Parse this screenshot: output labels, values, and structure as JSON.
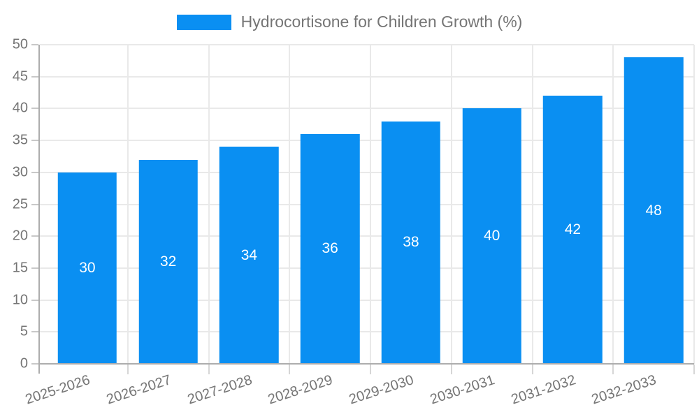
{
  "chart_data": {
    "type": "bar",
    "legend": {
      "label": "Hydrocortisone for Children Growth (%)",
      "position": "top"
    },
    "categories": [
      "2025-2026",
      "2026-2027",
      "2027-2028",
      "2028-2029",
      "2029-2030",
      "2030-2031",
      "2031-2032",
      "2032-2033"
    ],
    "series": [
      {
        "name": "Hydrocortisone for Children Growth (%)",
        "values": [
          30,
          32,
          34,
          36,
          38,
          40,
          42,
          48
        ]
      }
    ],
    "value_labels": [
      "30",
      "32",
      "34",
      "36",
      "38",
      "40",
      "42",
      "48"
    ],
    "ylim": [
      0,
      50
    ],
    "ytick_step": 5,
    "ytick_labels": [
      "0",
      "5",
      "10",
      "15",
      "20",
      "25",
      "30",
      "35",
      "40",
      "45",
      "50"
    ],
    "grid": true,
    "x_label_rotation_deg": -18,
    "colors": {
      "bar": "#0a8ff2",
      "value_label": "#ffffff",
      "axis_label": "#757575",
      "legend_text": "#757575",
      "gridline": "#e9e9e9",
      "axis_line": "#adadad",
      "background": "#ffffff"
    }
  }
}
